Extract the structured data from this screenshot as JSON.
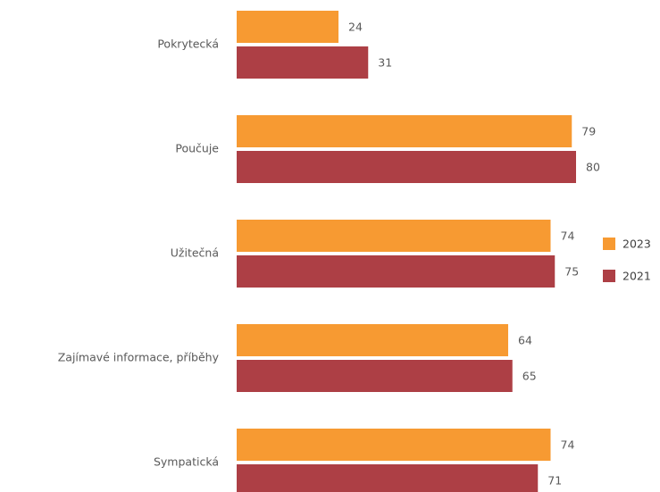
{
  "chart_data": {
    "type": "bar",
    "orientation": "horizontal",
    "categories": [
      "Pokrytecká",
      "Poučuje",
      "Užitečná",
      "Zajímavé informace, příběhy",
      "Sympatická"
    ],
    "series": [
      {
        "name": "2023",
        "color": "#f79a32",
        "values": [
          24,
          79,
          74,
          64,
          74
        ]
      },
      {
        "name": "2021",
        "color": "#ad3f45",
        "values": [
          31,
          80,
          75,
          65,
          71
        ]
      }
    ],
    "xlim": [
      0,
      100
    ],
    "legend": "right"
  }
}
